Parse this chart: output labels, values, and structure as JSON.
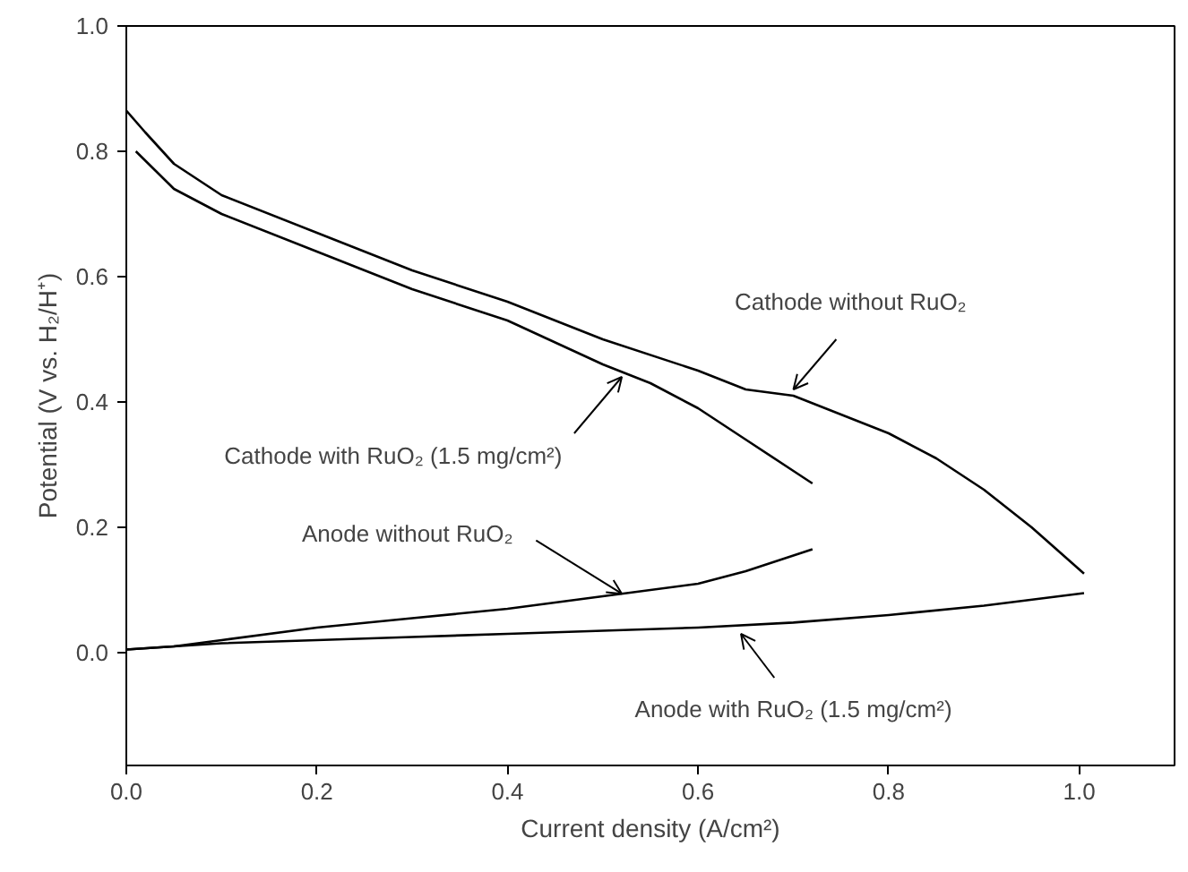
{
  "chart_data": {
    "type": "line",
    "xlabel": "Current density (A/cm²)",
    "ylabel": "Potential (V vs. H₂/H⁺)",
    "xlim": [
      0,
      1.1
    ],
    "ylim": [
      -0.18,
      1.0
    ],
    "xticks": [
      {
        "value": 0,
        "label": "0.0"
      },
      {
        "value": 0.2,
        "label": "0.2"
      },
      {
        "value": 0.4,
        "label": "0.4"
      },
      {
        "value": 0.6,
        "label": "0.6"
      },
      {
        "value": 0.8,
        "label": "0.8"
      },
      {
        "value": 1.0,
        "label": "1.0"
      }
    ],
    "yticks": [
      {
        "value": 0,
        "label": "0.0"
      },
      {
        "value": 0.2,
        "label": "0.2"
      },
      {
        "value": 0.4,
        "label": "0.4"
      },
      {
        "value": 0.6,
        "label": "0.6"
      },
      {
        "value": 0.8,
        "label": "0.8"
      },
      {
        "value": 1.0,
        "label": "1.0"
      }
    ],
    "grid": false,
    "marker": "none",
    "line_style": "solid",
    "series": [
      {
        "color": "#000000",
        "x": [
          0.0,
          0.02,
          0.05,
          0.1,
          0.2,
          0.3,
          0.4,
          0.5,
          0.6,
          0.65,
          0.7,
          0.75,
          0.8,
          0.85,
          0.9,
          0.95,
          1.005
        ],
        "values": [
          0.865,
          0.83,
          0.78,
          0.73,
          0.67,
          0.61,
          0.56,
          0.5,
          0.45,
          0.42,
          0.41,
          0.38,
          0.35,
          0.31,
          0.26,
          0.2,
          0.126
        ]
      },
      {
        "color": "#000000",
        "x": [
          0.01,
          0.03,
          0.05,
          0.1,
          0.2,
          0.3,
          0.4,
          0.5,
          0.55,
          0.6,
          0.65,
          0.7,
          0.72
        ],
        "values": [
          0.8,
          0.77,
          0.74,
          0.7,
          0.64,
          0.58,
          0.53,
          0.46,
          0.43,
          0.39,
          0.34,
          0.29,
          0.27
        ]
      },
      {
        "color": "#000000",
        "x": [
          0.0,
          0.05,
          0.1,
          0.2,
          0.3,
          0.4,
          0.5,
          0.6,
          0.65,
          0.7,
          0.72
        ],
        "values": [
          0.005,
          0.01,
          0.02,
          0.04,
          0.055,
          0.07,
          0.09,
          0.11,
          0.13,
          0.155,
          0.165
        ]
      },
      {
        "color": "#000000",
        "x": [
          0.0,
          0.1,
          0.2,
          0.3,
          0.4,
          0.5,
          0.6,
          0.7,
          0.8,
          0.9,
          1.005
        ],
        "values": [
          0.005,
          0.015,
          0.02,
          0.025,
          0.03,
          0.035,
          0.04,
          0.048,
          0.06,
          0.075,
          0.095
        ]
      }
    ],
    "annotations": [
      {
        "text": "Cathode without RuO₂",
        "x": 0.7,
        "y": 0.42
      },
      {
        "text": "Cathode with RuO₂ (1.5 mg/cm²)",
        "x": 0.52,
        "y": 0.44
      },
      {
        "text": "Anode without RuO₂",
        "x": 0.52,
        "y": 0.094
      },
      {
        "text": "Anode with RuO₂ (1.5 mg/cm²)",
        "x": 0.645,
        "y": 0.03
      }
    ]
  }
}
